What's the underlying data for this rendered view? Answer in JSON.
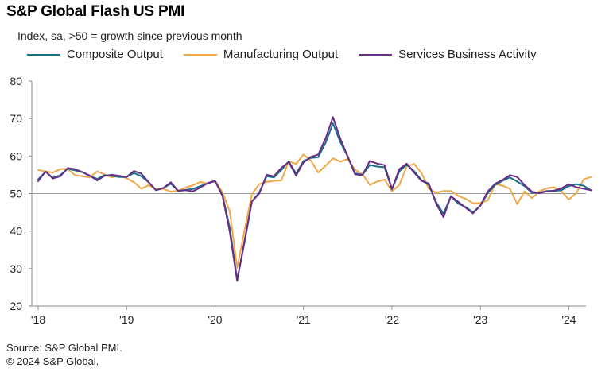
{
  "title": "S&P Global Flash US PMI",
  "subtitle": "Index, sa, >50 = growth  since previous  month",
  "source": "Source: S&P Global PMI.",
  "copyright": "© 2024 S&P Global.",
  "chart_data": {
    "type": "line",
    "title": "S&P Global Flash US PMI",
    "ylabel": "",
    "xlabel": "",
    "ylim": [
      20,
      80
    ],
    "yticks": [
      20,
      30,
      40,
      50,
      60,
      70,
      80
    ],
    "xticks": [
      {
        "label": "'18",
        "index": 0
      },
      {
        "label": "'19",
        "index": 12
      },
      {
        "label": "'20",
        "index": 24
      },
      {
        "label": "'21",
        "index": 36
      },
      {
        "label": "'22",
        "index": 48
      },
      {
        "label": "'23",
        "index": 60
      },
      {
        "label": "'24",
        "index": 72
      }
    ],
    "reference_line": 50,
    "grid": false,
    "legend": "top",
    "series": [
      {
        "name": "Composite Output",
        "color": "#1b6f8a",
        "values": [
          53.8,
          55.8,
          54.2,
          54.9,
          56.6,
          56.2,
          55.7,
          54.7,
          53.9,
          54.9,
          54.7,
          54.4,
          54.4,
          55.5,
          54.6,
          53.0,
          50.9,
          51.5,
          52.6,
          50.7,
          51.0,
          51.2,
          52.0,
          52.7,
          53.3,
          49.6,
          40.9,
          27.0,
          37.0,
          47.9,
          50.3,
          54.6,
          54.3,
          56.3,
          58.6,
          55.3,
          58.7,
          59.5,
          59.7,
          63.5,
          68.7,
          63.7,
          59.9,
          55.4,
          55.0,
          57.6,
          57.2,
          57.0,
          51.1,
          55.9,
          57.7,
          56.0,
          53.6,
          52.3,
          47.7,
          44.6,
          49.3,
          47.3,
          46.4,
          45.0,
          46.8,
          50.1,
          52.3,
          53.4,
          54.3,
          53.2,
          52.0,
          50.2,
          50.2,
          50.7,
          50.7,
          50.9,
          52.0,
          52.5,
          52.1,
          50.9
        ]
      },
      {
        "name": "Manufacturing Output",
        "color": "#f0a848",
        "values": [
          56.3,
          55.9,
          55.6,
          56.5,
          56.6,
          54.9,
          54.6,
          54.3,
          55.9,
          55.1,
          54.3,
          54.7,
          54.1,
          53.0,
          51.3,
          52.2,
          51.2,
          51.2,
          50.5,
          50.8,
          51.6,
          52.2,
          53.1,
          52.6,
          53.4,
          50.4,
          45.2,
          30.2,
          40.3,
          49.8,
          52.5,
          53.1,
          53.4,
          53.5,
          58.6,
          57.9,
          60.4,
          58.8,
          55.6,
          57.4,
          59.4,
          58.5,
          59.2,
          56.4,
          55.2,
          52.3,
          53.2,
          53.7,
          50.6,
          52.3,
          57.2,
          57.9,
          55.5,
          51.3,
          50.2,
          50.7,
          50.7,
          49.4,
          48.6,
          47.4,
          47.5,
          48.2,
          52.5,
          52.1,
          51.3,
          47.2,
          50.6,
          48.8,
          50.6,
          51.4,
          51.7,
          50.6,
          48.4,
          50.1,
          53.8,
          54.4
        ]
      },
      {
        "name": "Services Business Activity",
        "color": "#6a2d86",
        "values": [
          53.3,
          55.9,
          54.0,
          54.6,
          56.8,
          56.5,
          55.7,
          54.8,
          53.5,
          54.7,
          55.0,
          54.7,
          54.4,
          56.0,
          55.3,
          53.0,
          50.9,
          51.5,
          53.0,
          50.7,
          50.9,
          50.6,
          51.6,
          52.8,
          53.4,
          49.4,
          39.8,
          26.7,
          37.5,
          47.9,
          50.0,
          55.0,
          54.6,
          56.9,
          58.4,
          54.8,
          58.3,
          59.8,
          60.4,
          64.7,
          70.4,
          64.6,
          59.9,
          55.1,
          54.9,
          58.7,
          58.0,
          57.6,
          51.2,
          56.5,
          58.0,
          55.6,
          53.4,
          52.7,
          47.3,
          43.7,
          49.3,
          47.8,
          46.2,
          44.7,
          46.8,
          50.6,
          52.6,
          53.6,
          54.9,
          54.4,
          52.3,
          50.5,
          50.1,
          50.6,
          50.8,
          51.4,
          52.5,
          51.7,
          51.3,
          50.9
        ]
      }
    ]
  }
}
